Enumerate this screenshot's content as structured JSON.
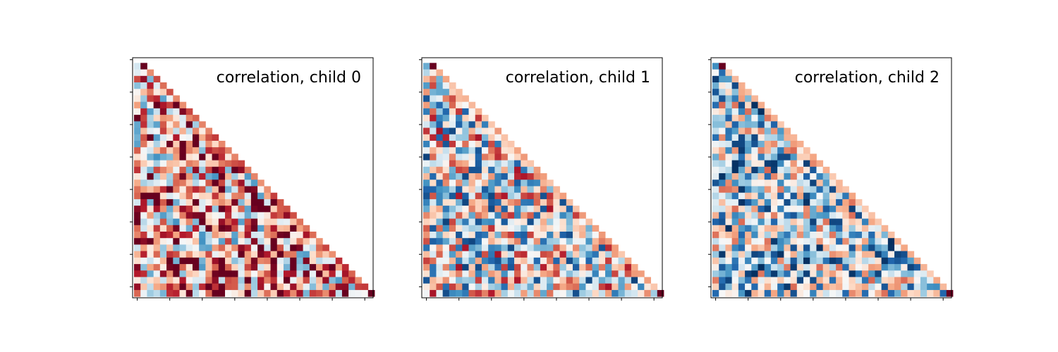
{
  "figure": {
    "background": "#ffffff",
    "colormap": "RdBu_r",
    "colormap_stops": [
      "#053061",
      "#2166ac",
      "#4393c3",
      "#92c5de",
      "#d1e5f0",
      "#f7f7f7",
      "#fddbc7",
      "#f4a582",
      "#d6604d",
      "#b2182b",
      "#67001f"
    ]
  },
  "chart_data": [
    {
      "type": "heatmap",
      "title": "correlation, child 0",
      "triangle": "lower",
      "size": 37,
      "value_range": [
        -1,
        1
      ],
      "seed": 11,
      "bias": 0.28,
      "spread": 0.55,
      "diagonal": 0.75,
      "tick_every": 5,
      "show_tick_labels": false,
      "grid": false
    },
    {
      "type": "heatmap",
      "title": "correlation, child 1",
      "triangle": "lower",
      "size": 37,
      "value_range": [
        -1,
        1
      ],
      "seed": 23,
      "bias": -0.05,
      "spread": 0.55,
      "diagonal": 0.45,
      "tick_every": 5,
      "show_tick_labels": false,
      "grid": false
    },
    {
      "type": "heatmap",
      "title": "correlation, child 2",
      "triangle": "lower",
      "size": 37,
      "value_range": [
        -1,
        1
      ],
      "seed": 37,
      "bias": -0.22,
      "spread": 0.5,
      "diagonal": 0.4,
      "tick_every": 5,
      "show_tick_labels": false,
      "grid": false
    }
  ]
}
